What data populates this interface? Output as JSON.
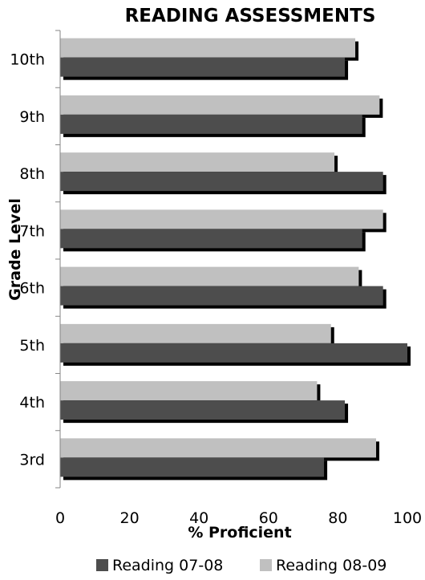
{
  "chart_data": {
    "type": "bar",
    "orientation": "horizontal",
    "title": "READING ASSESSMENTS",
    "xlabel": "% Proficient",
    "ylabel": "Grade Level",
    "xlim": [
      0,
      100
    ],
    "xticks": [
      0,
      20,
      40,
      60,
      80,
      100
    ],
    "categories": [
      "3rd",
      "4th",
      "5th",
      "6th",
      "7th",
      "8th",
      "9th",
      "10th"
    ],
    "series": [
      {
        "name": "Reading 07-08",
        "color": "#4d4d4d",
        "values": [
          76,
          82,
          100,
          93,
          87,
          93,
          87,
          82
        ]
      },
      {
        "name": "Reading 08-09",
        "color": "#c0c0c0",
        "values": [
          91,
          74,
          78,
          86,
          93,
          79,
          92,
          85
        ]
      }
    ],
    "shadow_color": "#000000",
    "grid": false,
    "legend_position": "bottom"
  }
}
